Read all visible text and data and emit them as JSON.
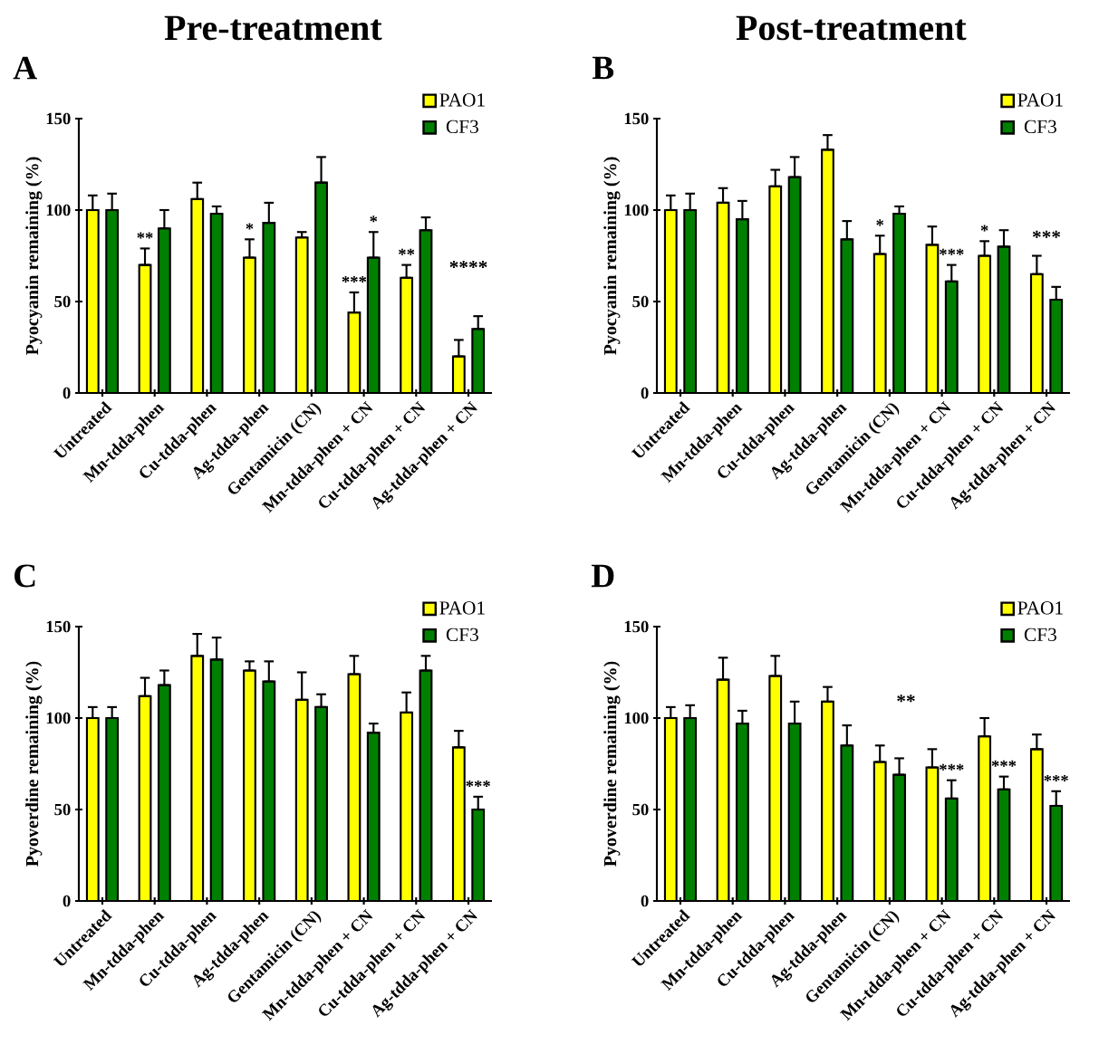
{
  "chart_data": [
    {
      "type": "bar",
      "title": "Pre-treatment",
      "subtitle": "A",
      "ylabel": "Pyocyanin remaining (%)",
      "categories": [
        "Untreated",
        "Mn-tdda-phen",
        "Cu-tdda-phen",
        "Ag-tdda-phen",
        "Gentamicin (CN)",
        "Mn-tdda-phen + CN",
        "Cu-tdda-phen + CN",
        "Ag-tdda-phen + CN"
      ],
      "series": [
        {
          "name": "PAO1",
          "color": "#ffff00",
          "values": [
            100,
            70,
            106,
            74,
            85,
            44,
            63,
            20
          ],
          "errors": [
            [
              100,
              108
            ],
            [
              70,
              79
            ],
            [
              106,
              115
            ],
            [
              74,
              84
            ],
            [
              85,
              88
            ],
            [
              44,
              55
            ],
            [
              63,
              70
            ],
            [
              20,
              29
            ]
          ]
        },
        {
          "name": "CF3",
          "color": "#008000",
          "values": [
            100,
            90,
            98,
            93,
            115,
            74,
            89,
            35
          ],
          "errors": [
            [
              100,
              109
            ],
            [
              90,
              100
            ],
            [
              98,
              102
            ],
            [
              93,
              104
            ],
            [
              115,
              129
            ],
            [
              74,
              88
            ],
            [
              89,
              96
            ],
            [
              35,
              42
            ]
          ]
        }
      ],
      "ylim": [
        0,
        150
      ],
      "yticks": [
        0,
        50,
        100,
        150
      ],
      "legend": "top right",
      "annotations": [
        {
          "text": "**",
          "x": "Mn-tdda-phen",
          "y": 70
        },
        {
          "text": "*",
          "x": "Ag-tdda-phen",
          "y": 74
        },
        {
          "text": "***",
          "x": "Mn-tdda-phen + CN",
          "y": 44
        },
        {
          "text": "*",
          "x": "Mn-tdda-phen + CN",
          "y": 74
        },
        {
          "text": "**",
          "x": "Cu-tdda-phen + CN",
          "y": 63
        },
        "****"
      ]
    },
    {
      "type": "bar",
      "title": "Post-treatment",
      "subtitle": "B",
      "ylabel": "Pyocyanin remaining (%)",
      "categories": [
        "Untreated",
        "Mn-tdda-phen",
        "Cu-tdda-phen",
        "Ag-tdda-phen",
        "Gentamicin (CN)",
        "Mn-tdda-phen + CN",
        "Cu-tdda-phen + CN",
        "Ag-tdda-phen + CN"
      ],
      "series": [
        {
          "name": "PAO1",
          "color": "#ffff00",
          "values": [
            100,
            104,
            113,
            133,
            76,
            81,
            75,
            65
          ],
          "errors": [
            [
              100,
              108
            ],
            [
              104,
              112
            ],
            [
              113,
              122
            ],
            [
              133,
              141
            ],
            [
              76,
              86
            ],
            [
              81,
              91
            ],
            [
              75,
              83
            ],
            [
              65,
              75
            ]
          ]
        },
        {
          "name": "CF3",
          "color": "#008000",
          "values": [
            100,
            95,
            118,
            84,
            98,
            61,
            80,
            51
          ],
          "errors": [
            [
              100,
              109
            ],
            [
              95,
              105
            ],
            [
              118,
              129
            ],
            [
              84,
              94
            ],
            [
              98,
              102
            ],
            [
              61,
              70
            ],
            [
              80,
              89
            ],
            [
              51,
              58
            ]
          ]
        }
      ],
      "ylim": [
        0,
        150
      ],
      "yticks": [
        0,
        50,
        100,
        150
      ],
      "legend": "top right",
      "annotations": [
        {
          "text": "*",
          "x": "Gentamicin (CN)",
          "y": 76
        },
        {
          "text": "***",
          "x": "Mn-tdda-phen + CN",
          "y": 61
        },
        {
          "text": "*",
          "x": "Cu-tdda-phen + CN",
          "y": 75
        },
        "***"
      ]
    },
    {
      "type": "bar",
      "subtitle": "C",
      "ylabel": "Pyoverdine remaining (%)",
      "categories": [
        "Untreated",
        "Mn-tdda-phen",
        "Cu-tdda-phen",
        "Ag-tdda-phen",
        "Gentamicin (CN)",
        "Mn-tdda-phen + CN",
        "Cu-tdda-phen + CN",
        "Ag-tdda-phen + CN"
      ],
      "series": [
        {
          "name": "PAO1",
          "color": "#ffff00",
          "values": [
            100,
            112,
            134,
            126,
            110,
            124,
            103,
            84
          ],
          "errors": [
            [
              100,
              106
            ],
            [
              112,
              122
            ],
            [
              134,
              146
            ],
            [
              126,
              131
            ],
            [
              110,
              125
            ],
            [
              124,
              134
            ],
            [
              103,
              114
            ],
            [
              84,
              93
            ]
          ]
        },
        {
          "name": "CF3",
          "color": "#008000",
          "values": [
            100,
            118,
            132,
            120,
            106,
            92,
            126,
            50
          ],
          "errors": [
            [
              100,
              106
            ],
            [
              118,
              126
            ],
            [
              132,
              144
            ],
            [
              120,
              131
            ],
            [
              106,
              113
            ],
            [
              92,
              97
            ],
            [
              126,
              134
            ],
            [
              50,
              57
            ]
          ]
        }
      ],
      "ylim": [
        0,
        150
      ],
      "yticks": [
        0,
        50,
        100,
        150
      ],
      "legend": "top right",
      "annotations": [
        {
          "text": "***",
          "x": "Ag-tdda-phen + CN",
          "y": 50
        }
      ]
    },
    {
      "type": "bar",
      "subtitle": "D",
      "ylabel": "Pyoverdine remaining (%)",
      "categories": [
        "Untreated",
        "Mn-tdda-phen",
        "Cu-tdda-phen",
        "Ag-tdda-phen",
        "Gentamicin (CN)",
        "Mn-tdda-phen + CN",
        "Cu-tdda-phen + CN",
        "Ag-tdda-phen + CN"
      ],
      "series": [
        {
          "name": "PAO1",
          "color": "#ffff00",
          "values": [
            100,
            121,
            123,
            109,
            76,
            73,
            90,
            83
          ],
          "errors": [
            [
              100,
              106
            ],
            [
              121,
              133
            ],
            [
              123,
              134
            ],
            [
              109,
              117
            ],
            [
              76,
              85
            ],
            [
              73,
              83
            ],
            [
              90,
              100
            ],
            [
              83,
              91
            ]
          ]
        },
        {
          "name": "CF3",
          "color": "#008000",
          "values": [
            100,
            97,
            97,
            85,
            69,
            56,
            61,
            52
          ],
          "errors": [
            [
              100,
              107
            ],
            [
              97,
              104
            ],
            [
              97,
              109
            ],
            [
              85,
              96
            ],
            [
              69,
              78
            ],
            [
              56,
              66
            ],
            [
              61,
              68
            ],
            [
              52,
              60
            ]
          ]
        }
      ],
      "ylim": [
        0,
        150
      ],
      "yticks": [
        0,
        50,
        100,
        150
      ],
      "legend": "top right",
      "annotations": [
        "**",
        {
          "text": "***",
          "x": "Mn-tdda-phen + CN",
          "y": 56
        },
        {
          "text": "***",
          "x": "Cu-tdda-phen + CN",
          "y": 61
        },
        {
          "text": "***",
          "x": "Ag-tdda-phen + CN",
          "y": 52
        }
      ]
    }
  ]
}
